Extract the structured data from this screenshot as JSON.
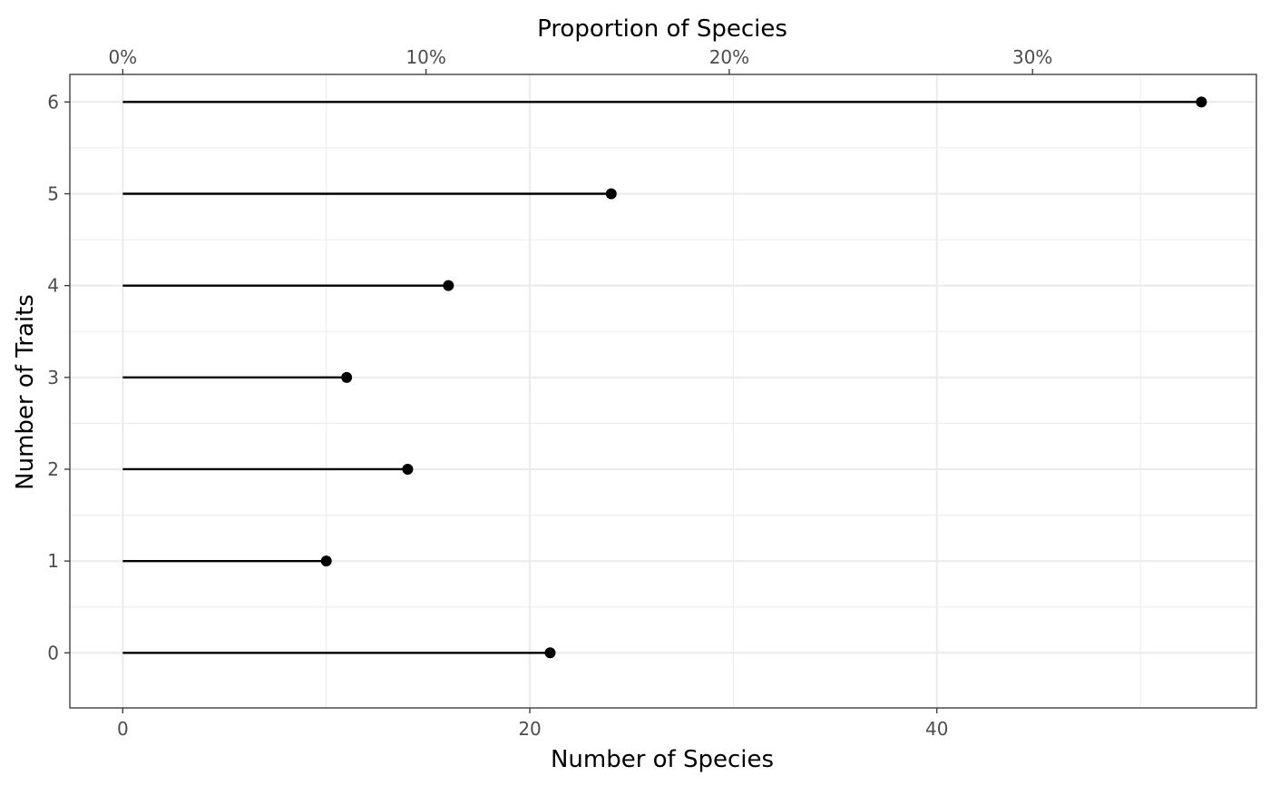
{
  "chart_data": {
    "type": "lollipop",
    "xlabel": "Number of Species",
    "x2label": "Proportion of Species",
    "ylabel": "Number of Traits",
    "categories": [
      "0",
      "1",
      "2",
      "3",
      "4",
      "5",
      "6"
    ],
    "values": [
      21,
      10,
      14,
      11,
      16,
      24,
      53
    ],
    "xlim": [
      -2.6,
      55.7
    ],
    "x_ticks": [
      0,
      20,
      40
    ],
    "x2_ticks": [
      0,
      0.1,
      0.2,
      0.3
    ],
    "x2_tick_labels": [
      "0%",
      "10%",
      "20%",
      "30%"
    ],
    "total_species": 149,
    "grid": true,
    "colors": {
      "stem": "#000000",
      "point": "#000000",
      "grid": "#ebebeb",
      "panel_border": "#333333"
    }
  }
}
